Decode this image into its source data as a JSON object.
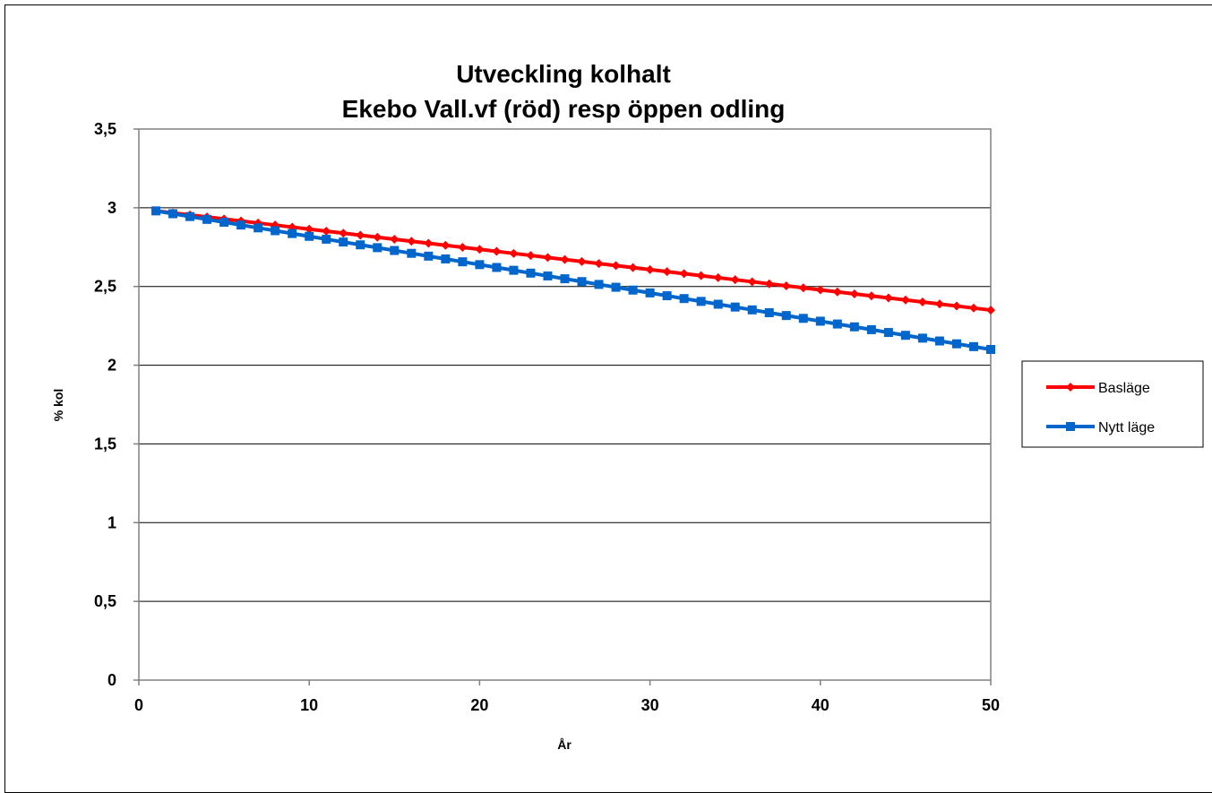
{
  "chart_data": {
    "type": "line",
    "title_line1": "Utveckling kolhalt",
    "title_line2": "Ekebo Vall.vf (röd) resp öppen odling",
    "xlabel": "År",
    "ylabel": "% kol",
    "xlim": [
      0,
      50
    ],
    "ylim": [
      0,
      3.5
    ],
    "x_ticks": [
      "0",
      "10",
      "20",
      "30",
      "40",
      "50"
    ],
    "y_ticks": [
      "0",
      "0,5",
      "1",
      "1,5",
      "2",
      "2,5",
      "3",
      "3,5"
    ],
    "grid": "horizontal",
    "legend_position": "right",
    "x_range": [
      1,
      50
    ],
    "series": [
      {
        "name": "Basläge",
        "color": "#ff0000",
        "marker": "diamond",
        "start": 2.98,
        "end": 2.35
      },
      {
        "name": "Nytt läge",
        "color": "#0066cc",
        "marker": "square",
        "start": 2.98,
        "end": 2.1
      }
    ]
  }
}
